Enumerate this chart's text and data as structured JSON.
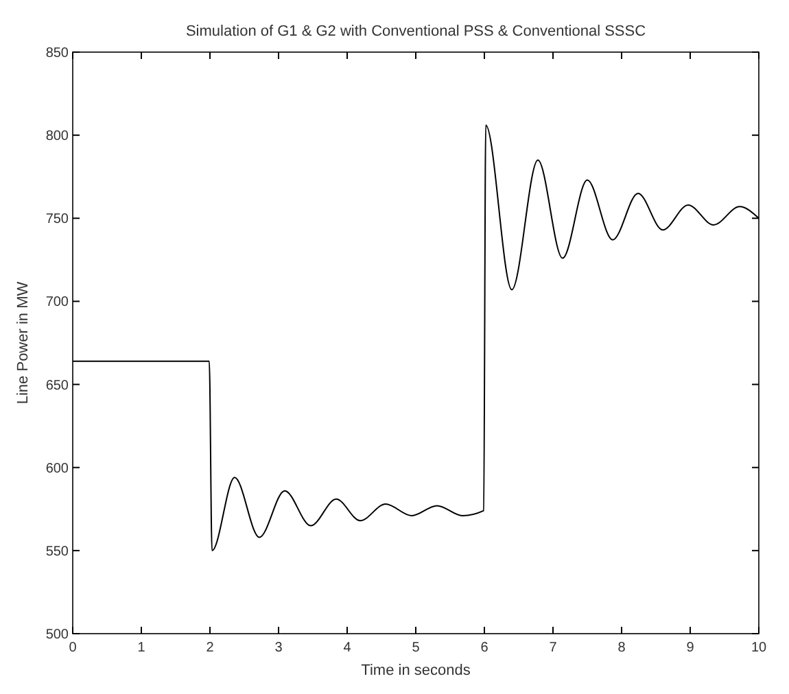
{
  "chart_data": {
    "type": "line",
    "title": "Simulation of G1 & G2 with Conventional PSS & Conventional SSSC",
    "xlabel": "Time in seconds",
    "ylabel": "Line Power in MW",
    "x": [
      0,
      1,
      1.99,
      2.03,
      2.36,
      2.72,
      3.09,
      3.47,
      3.84,
      4.19,
      4.56,
      4.94,
      5.31,
      5.68,
      5.99,
      6.02,
      6.4,
      6.78,
      7.14,
      7.5,
      7.87,
      8.24,
      8.6,
      8.97,
      9.34,
      9.72,
      10
    ],
    "series": [
      {
        "color": "#000000",
        "values": [
          664,
          664,
          664,
          550,
          594,
          558,
          586,
          565,
          581,
          568,
          578,
          571,
          577,
          571,
          574,
          806,
          707,
          785,
          726,
          773,
          737,
          765,
          743,
          758,
          746,
          757,
          750
        ]
      }
    ],
    "xlim": [
      0,
      10
    ],
    "ylim": [
      500,
      850
    ],
    "xticks": [
      0,
      1,
      2,
      3,
      4,
      5,
      6,
      7,
      8,
      9,
      10
    ],
    "yticks": [
      500,
      550,
      600,
      650,
      700,
      750,
      800,
      850
    ],
    "grid": false,
    "marker": "none",
    "line_style": "solid"
  }
}
